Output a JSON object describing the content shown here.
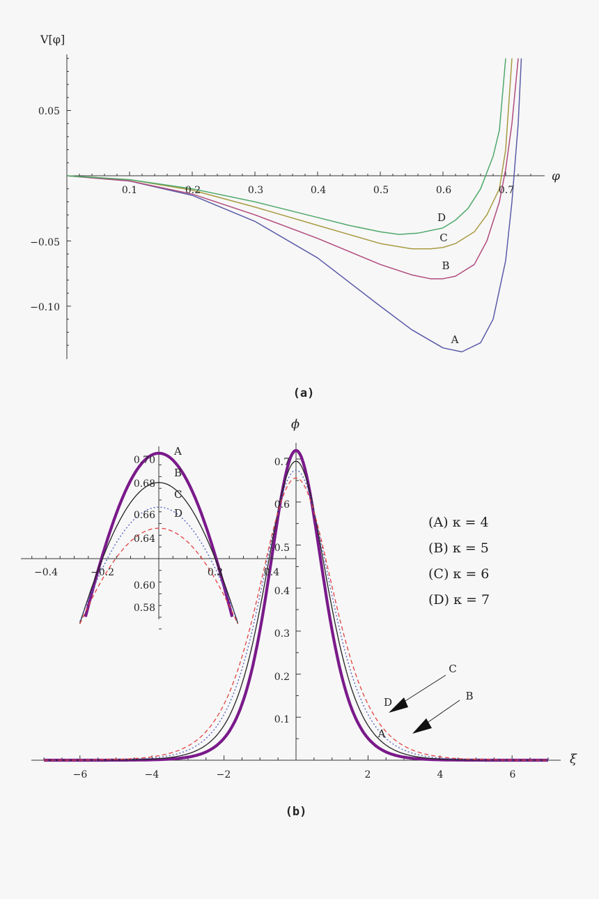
{
  "chart_data": [
    {
      "panel": "(a)",
      "type": "line",
      "ylabel": "V[φ]",
      "xlabel": "φ",
      "xlim": [
        0,
        0.75
      ],
      "ylim": [
        -0.14,
        0.09
      ],
      "x_ticks": [
        "0.1",
        "0.2",
        "0.3",
        "0.4",
        "0.5",
        "0.6",
        "0.7"
      ],
      "y_ticks": [
        "0.05",
        "−0.05",
        "−0.10"
      ],
      "grid": false,
      "series": [
        {
          "name": "A",
          "color": "#5a5aa8",
          "x": [
            0,
            0.1,
            0.2,
            0.3,
            0.4,
            0.5,
            0.55,
            0.6,
            0.63,
            0.66,
            0.68,
            0.7,
            0.71,
            0.72,
            0.725
          ],
          "y": [
            0,
            -0.004,
            -0.015,
            -0.035,
            -0.063,
            -0.1,
            -0.118,
            -0.132,
            -0.135,
            -0.128,
            -0.11,
            -0.065,
            -0.02,
            0.04,
            0.09
          ]
        },
        {
          "name": "B",
          "color": "#b04a7c",
          "x": [
            0,
            0.1,
            0.2,
            0.3,
            0.4,
            0.5,
            0.55,
            0.58,
            0.6,
            0.62,
            0.65,
            0.67,
            0.69,
            0.7,
            0.71,
            0.72
          ],
          "y": [
            0,
            -0.004,
            -0.014,
            -0.03,
            -0.048,
            -0.068,
            -0.076,
            -0.079,
            -0.079,
            -0.077,
            -0.068,
            -0.05,
            -0.02,
            0.005,
            0.04,
            0.09
          ]
        },
        {
          "name": "C",
          "color": "#a89a40",
          "x": [
            0,
            0.1,
            0.2,
            0.3,
            0.4,
            0.5,
            0.55,
            0.58,
            0.6,
            0.62,
            0.65,
            0.67,
            0.69,
            0.7,
            0.71
          ],
          "y": [
            0,
            -0.003,
            -0.011,
            -0.024,
            -0.038,
            -0.052,
            -0.056,
            -0.056,
            -0.055,
            -0.052,
            -0.043,
            -0.03,
            -0.01,
            0.02,
            0.09
          ]
        },
        {
          "name": "D",
          "color": "#4ea86a",
          "x": [
            0,
            0.1,
            0.2,
            0.3,
            0.4,
            0.45,
            0.5,
            0.53,
            0.56,
            0.6,
            0.62,
            0.64,
            0.66,
            0.68,
            0.69,
            0.7
          ],
          "y": [
            0,
            -0.003,
            -0.01,
            -0.02,
            -0.032,
            -0.038,
            -0.043,
            -0.045,
            -0.044,
            -0.04,
            -0.034,
            -0.025,
            -0.01,
            0.015,
            0.035,
            0.09
          ]
        }
      ],
      "annotations": [
        "A",
        "B",
        "C",
        "D"
      ]
    },
    {
      "panel": "(b)",
      "type": "line",
      "xlabel": "ξ",
      "ylabel": "ϕ",
      "xlim": [
        -7.4,
        7.4
      ],
      "ylim": [
        0,
        0.74
      ],
      "x_ticks": [
        "−6",
        "−4",
        "−2",
        "2",
        "4",
        "6"
      ],
      "y_ticks": [
        "0.1",
        "0.2",
        "0.3",
        "0.4",
        "0.5",
        "0.6",
        "0.7"
      ],
      "grid": false,
      "legend": [
        "(A) κ = 4",
        "(B) κ = 5",
        "(C) κ = 6",
        "(D) κ = 7"
      ],
      "legend_placement": "right",
      "arrow_labels": [
        "C",
        "B"
      ],
      "curve_labels": [
        "D",
        "A"
      ],
      "series": [
        {
          "name": "A",
          "color": "#7a1a8a",
          "style": "thick",
          "amplitude": 0.72,
          "width": 1.0
        },
        {
          "name": "B",
          "color": "#222222",
          "style": "solid",
          "amplitude": 0.695,
          "width": 1.15
        },
        {
          "name": "C",
          "color": "#4a5ac0",
          "style": "dotted",
          "amplitude": 0.674,
          "width": 1.27
        },
        {
          "name": "D",
          "color": "#e04040",
          "style": "dashed",
          "amplitude": 0.656,
          "width": 1.38
        }
      ],
      "inset": {
        "xlim": [
          -0.47,
          0.47
        ],
        "ylim": [
          0.57,
          0.72
        ],
        "x_ticks": [
          "−0.4",
          "−0.2",
          "0.2",
          "0.4"
        ],
        "y_ticks": [
          "0.70",
          "0.68",
          "0.66",
          "0.64",
          "0.60",
          "0.58"
        ],
        "labels": [
          "A",
          "B",
          "C",
          "D"
        ]
      }
    }
  ],
  "captions": {
    "a": "(a)",
    "b": "(b)"
  }
}
